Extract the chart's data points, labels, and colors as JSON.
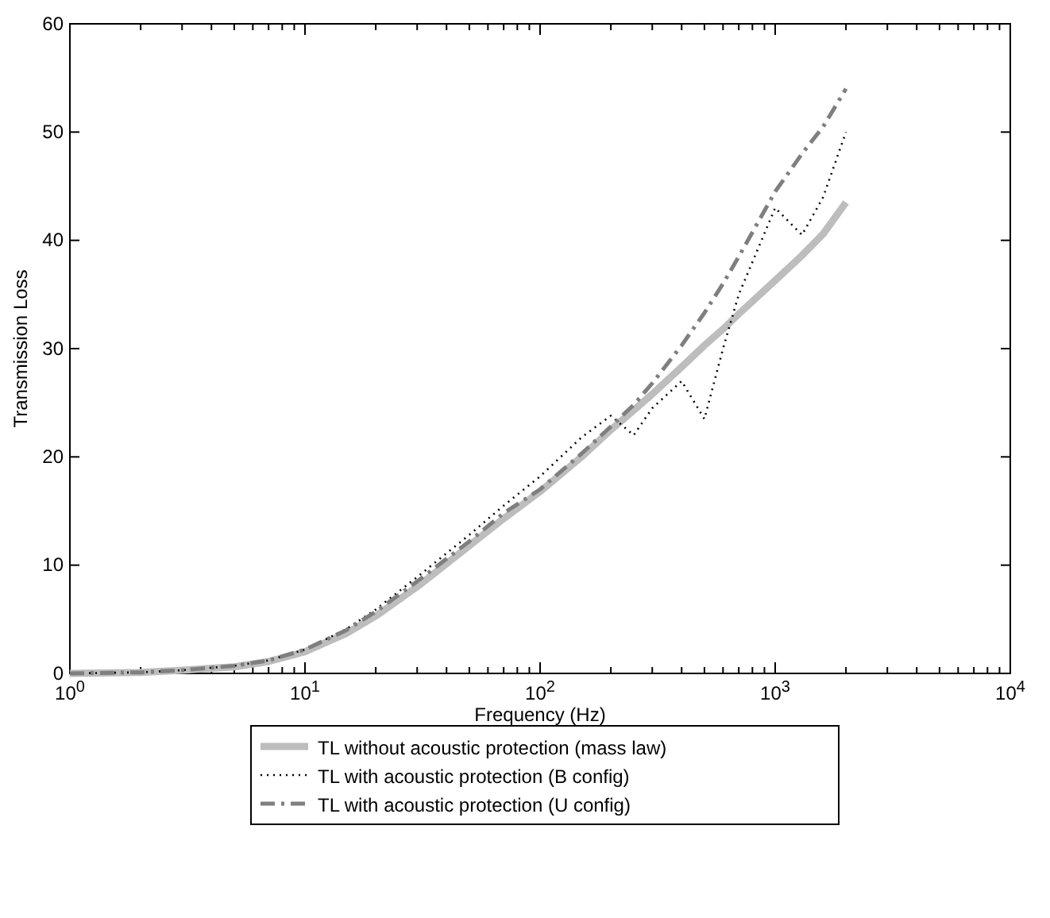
{
  "chart_data": {
    "type": "line",
    "xlabel": "Frequency (Hz)",
    "ylabel": "Transmission Loss",
    "log": "x",
    "x": [
      1,
      2,
      3,
      5,
      7,
      10,
      15,
      20,
      30,
      50,
      70,
      100,
      150,
      200,
      250,
      300,
      400,
      500,
      600,
      700,
      1000,
      1300,
      1600,
      2000
    ],
    "series": [
      {
        "name": "TL without acoustic protection (mass law)",
        "color": "#bdbdbd",
        "line_style": "solid",
        "values": [
          0,
          0.1,
          0.3,
          0.6,
          1.1,
          2,
          3.7,
          5.3,
          8,
          11.8,
          14.3,
          16.8,
          20,
          22.5,
          24.3,
          25.8,
          28.3,
          30.3,
          31.8,
          33.2,
          36.3,
          38.6,
          40.6,
          43.5
        ]
      },
      {
        "name": "TL with acoustic protection (B config)",
        "color": "#000000",
        "line_style": "dotted",
        "values": [
          0,
          0.1,
          0.3,
          0.7,
          1.2,
          2.2,
          4.1,
          5.9,
          8.9,
          12.8,
          15.5,
          18.2,
          21.8,
          23.8,
          22,
          24.5,
          27,
          23.5,
          30,
          35,
          43,
          40.5,
          44,
          50
        ]
      },
      {
        "name": "TL with acoustic protection (U config)",
        "color": "#7f7f7f",
        "line_style": "dashed",
        "values": [
          0,
          0.1,
          0.3,
          0.7,
          1.2,
          2.2,
          4,
          5.7,
          8.5,
          12.2,
          14.8,
          17,
          20.3,
          22.8,
          24.8,
          26.8,
          30.3,
          33.3,
          36,
          38.5,
          44.5,
          48,
          50.5,
          54
        ]
      }
    ],
    "xlim": [
      1,
      10000
    ],
    "xticks": [
      {
        "value": 1,
        "label": "10$^{0}$"
      },
      {
        "value": 2,
        "label": null
      },
      {
        "value": 3,
        "label": null
      },
      {
        "value": 4,
        "label": null
      },
      {
        "value": 5,
        "label": null
      },
      {
        "value": 6,
        "label": null
      },
      {
        "value": 7,
        "label": null
      },
      {
        "value": 8,
        "label": null
      },
      {
        "value": 9,
        "label": null
      },
      {
        "value": 10,
        "label": "10$^{1}$"
      },
      {
        "value": 20,
        "label": null
      },
      {
        "value": 30,
        "label": null
      },
      {
        "value": 40,
        "label": null
      },
      {
        "value": 50,
        "label": null
      },
      {
        "value": 60,
        "label": null
      },
      {
        "value": 70,
        "label": null
      },
      {
        "value": 80,
        "label": null
      },
      {
        "value": 90,
        "label": null
      },
      {
        "value": 100,
        "label": "10$^{2}$"
      },
      {
        "value": 200,
        "label": null
      },
      {
        "value": 300,
        "label": null
      },
      {
        "value": 400,
        "label": null
      },
      {
        "value": 500,
        "label": null
      },
      {
        "value": 600,
        "label": null
      },
      {
        "value": 700,
        "label": null
      },
      {
        "value": 800,
        "label": null
      },
      {
        "value": 900,
        "label": null
      },
      {
        "value": 1000,
        "label": "10$^{3}$"
      },
      {
        "value": 2000,
        "label": null
      },
      {
        "value": 3000,
        "label": null
      },
      {
        "value": 4000,
        "label": null
      },
      {
        "value": 5000,
        "label": null
      },
      {
        "value": 6000,
        "label": null
      },
      {
        "value": 7000,
        "label": null
      },
      {
        "value": 8000,
        "label": null
      },
      {
        "value": 9000,
        "label": null
      },
      {
        "value": 10000,
        "label": "10$^{4}$"
      }
    ],
    "ylim": [
      0,
      60
    ],
    "yticks": [
      0,
      10,
      20,
      30,
      40,
      50,
      60
    ],
    "legend": "bottom",
    "grid": false
  }
}
